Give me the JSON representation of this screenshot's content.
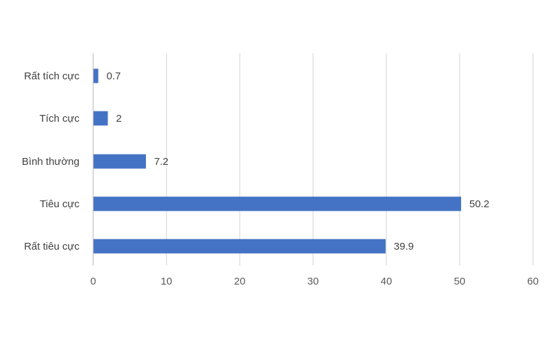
{
  "chart_data": {
    "type": "bar",
    "orientation": "horizontal",
    "categories": [
      "Rất tích cực",
      "Tích cực",
      "Bình thường",
      "Tiêu cực",
      "Rất tiêu cực"
    ],
    "values": [
      0.7,
      2,
      7.2,
      50.2,
      39.9
    ],
    "data_labels": [
      "0.7",
      "2",
      "7.2",
      "50.2",
      "39.9"
    ],
    "xlim": [
      0,
      60
    ],
    "xticks": [
      0,
      10,
      20,
      30,
      40,
      50,
      60
    ],
    "xtick_labels": [
      "0",
      "10",
      "20",
      "30",
      "40",
      "50",
      "60"
    ],
    "grid": true,
    "legend": "none",
    "colors": {
      "bar": "#4472C4",
      "grid": "#D9D9D9",
      "axis": "#BFBFBF",
      "text": "#404040"
    }
  }
}
